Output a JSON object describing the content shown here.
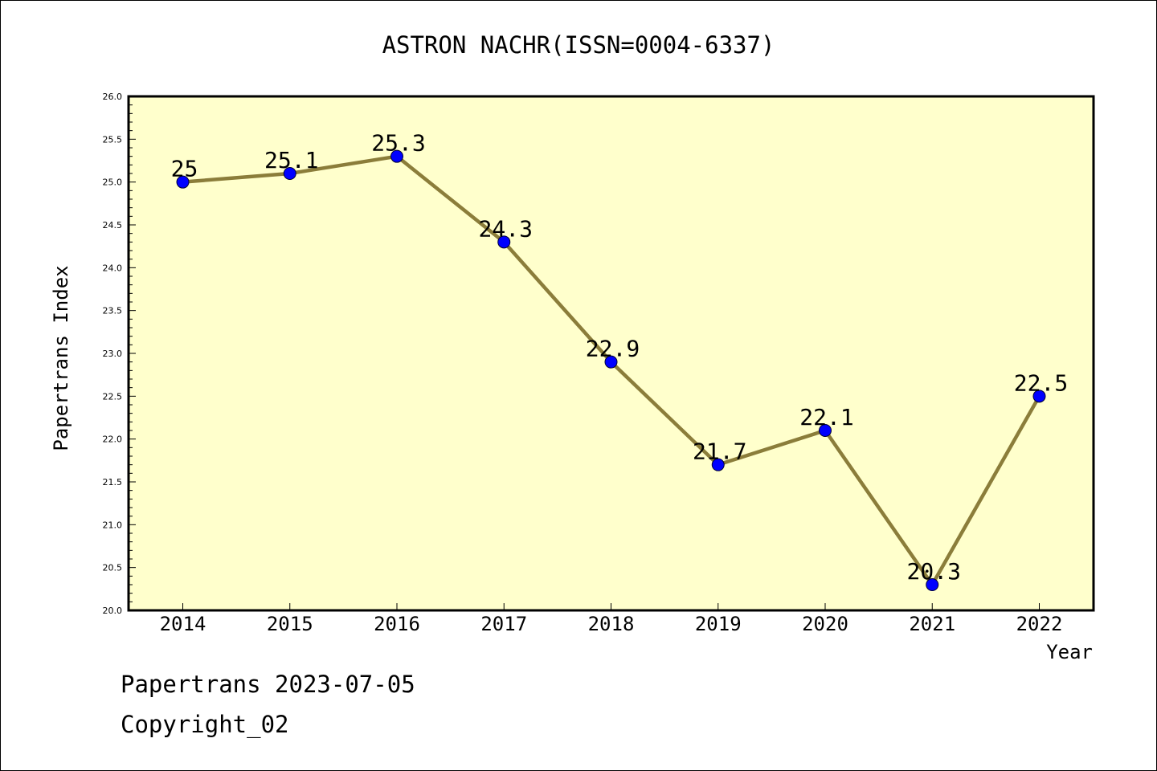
{
  "footer": {
    "stamp": "Papertrans 2023-07-05",
    "copyright": "Copyright_02"
  },
  "colors": {
    "plot_background": "#ffffcc",
    "line": "#8b7d3a",
    "marker": "#0000ff",
    "axis": "#000000"
  },
  "chart_data": {
    "type": "line",
    "title": "ASTRON NACHR(ISSN=0004-6337)",
    "xlabel": "Year",
    "ylabel": "Papertrans Index",
    "categories": [
      "2014",
      "2015",
      "2016",
      "2017",
      "2018",
      "2019",
      "2020",
      "2021",
      "2022"
    ],
    "series": [
      {
        "values": [
          25,
          25.1,
          25.3,
          24.3,
          22.9,
          21.7,
          22.1,
          20.3,
          22.5
        ],
        "labels": [
          "25",
          "25.1",
          "25.3",
          "24.3",
          "22.9",
          "21.7",
          "22.1",
          "20.3",
          "22.5"
        ]
      }
    ],
    "ylim": [
      20.0,
      26.0
    ],
    "yticks": [
      "20.0",
      "20.5",
      "21.0",
      "21.5",
      "22.0",
      "22.5",
      "23.0",
      "23.5",
      "24.0",
      "24.5",
      "25.0",
      "25.5",
      "26.0"
    ],
    "grid": false,
    "legend": "none"
  }
}
